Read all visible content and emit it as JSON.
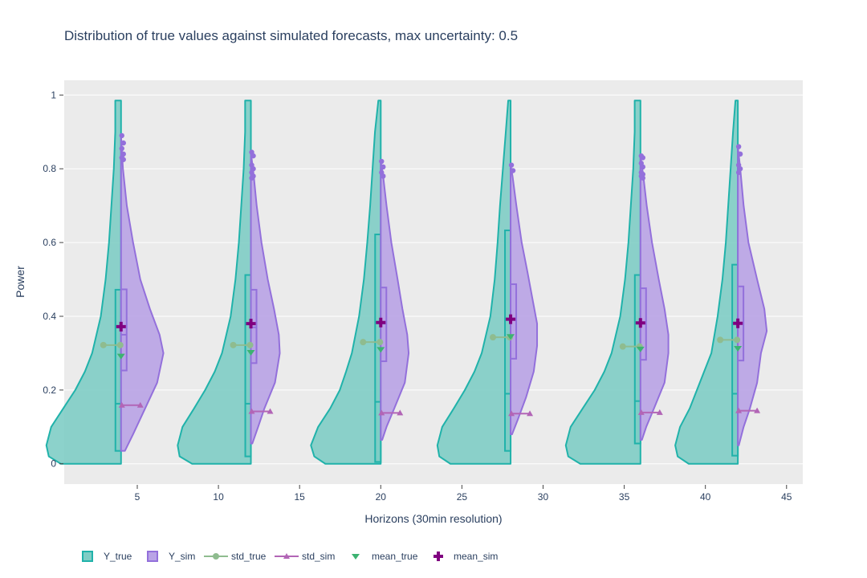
{
  "chart_data": {
    "type": "violin",
    "title": "Distribution of true values against simulated forecasts, max uncertainty: 0.5",
    "xlabel": "Horizons (30min resolution)",
    "ylabel": "Power",
    "xlim": [
      0.5,
      46
    ],
    "ylim": [
      -0.055,
      1.04
    ],
    "x_ticks": [
      5,
      10,
      15,
      20,
      25,
      30,
      35,
      40,
      45
    ],
    "y_ticks": [
      0,
      0.2,
      0.4,
      0.6,
      0.8,
      1
    ],
    "y_tick_labels": [
      "0",
      "0.2",
      "0.4",
      "0.6",
      "0.8",
      "1"
    ],
    "grid": true,
    "legend_position": "bottom-left",
    "colors": {
      "y_true_line": "#20b2aa",
      "y_true_fill": "#7fcdc5",
      "y_sim_line": "#9370db",
      "y_sim_fill": "#b9a3e6",
      "std_true": "#8fbc8f",
      "std_sim": "#b265b6",
      "mean_true": "#3cb371",
      "mean_sim": "#800080",
      "plot_bg": "#ebebeb"
    },
    "legend": [
      {
        "name": "Y_true",
        "symbol": "box-true"
      },
      {
        "name": "Y_sim",
        "symbol": "box-sim"
      },
      {
        "name": "std_true",
        "symbol": "line-circle"
      },
      {
        "name": "std_sim",
        "symbol": "line-triangle"
      },
      {
        "name": "mean_true",
        "symbol": "triangle-down"
      },
      {
        "name": "mean_sim",
        "symbol": "cross"
      }
    ],
    "horizons": [
      {
        "x": 4,
        "max_true": 0.985,
        "true_box": {
          "q1": 0.035,
          "median": 0.163,
          "q3": 0.472
        },
        "sim_box": {
          "q1": 0.253,
          "median": 0.35,
          "q3": 0.473
        },
        "sim_range": [
          0.035,
          0.89
        ],
        "true_density": [
          [
            0.0,
            1.25
          ],
          [
            0.02,
            1.5
          ],
          [
            0.05,
            1.55
          ],
          [
            0.1,
            1.45
          ],
          [
            0.15,
            1.2
          ],
          [
            0.2,
            0.95
          ],
          [
            0.25,
            0.75
          ],
          [
            0.3,
            0.6
          ],
          [
            0.4,
            0.42
          ],
          [
            0.5,
            0.32
          ],
          [
            0.6,
            0.25
          ],
          [
            0.7,
            0.2
          ],
          [
            0.8,
            0.15
          ],
          [
            0.9,
            0.12
          ],
          [
            0.95,
            0.12
          ],
          [
            0.985,
            0.12
          ]
        ],
        "sim_density": [
          [
            0.035,
            0.08
          ],
          [
            0.08,
            0.25
          ],
          [
            0.15,
            0.5
          ],
          [
            0.22,
            0.75
          ],
          [
            0.3,
            0.88
          ],
          [
            0.35,
            0.8
          ],
          [
            0.42,
            0.6
          ],
          [
            0.5,
            0.4
          ],
          [
            0.6,
            0.25
          ],
          [
            0.7,
            0.12
          ],
          [
            0.8,
            0.04
          ],
          [
            0.89,
            0.0
          ]
        ],
        "sim_outliers": [
          0.89,
          0.87,
          0.855,
          0.84,
          0.83,
          0.825
        ],
        "std_true": 0.322,
        "mean_true": 0.292,
        "std_sim": 0.159,
        "mean_sim": 0.372
      },
      {
        "x": 12,
        "max_true": 0.985,
        "true_box": {
          "q1": 0.02,
          "median": 0.163,
          "q3": 0.512
        },
        "sim_box": {
          "q1": 0.273,
          "median": 0.37,
          "q3": 0.472
        },
        "sim_range": [
          0.055,
          0.845
        ],
        "true_density": [
          [
            0.0,
            1.22
          ],
          [
            0.02,
            1.48
          ],
          [
            0.05,
            1.52
          ],
          [
            0.1,
            1.42
          ],
          [
            0.15,
            1.18
          ],
          [
            0.2,
            0.95
          ],
          [
            0.25,
            0.75
          ],
          [
            0.3,
            0.6
          ],
          [
            0.4,
            0.42
          ],
          [
            0.5,
            0.32
          ],
          [
            0.6,
            0.25
          ],
          [
            0.7,
            0.2
          ],
          [
            0.8,
            0.15
          ],
          [
            0.9,
            0.12
          ],
          [
            0.985,
            0.12
          ]
        ],
        "sim_density": [
          [
            0.055,
            0.03
          ],
          [
            0.1,
            0.15
          ],
          [
            0.15,
            0.28
          ],
          [
            0.22,
            0.5
          ],
          [
            0.3,
            0.6
          ],
          [
            0.35,
            0.58
          ],
          [
            0.42,
            0.48
          ],
          [
            0.5,
            0.35
          ],
          [
            0.6,
            0.22
          ],
          [
            0.7,
            0.12
          ],
          [
            0.78,
            0.06
          ],
          [
            0.845,
            0.0
          ]
        ],
        "sim_outliers": [
          0.845,
          0.835,
          0.81,
          0.8,
          0.79,
          0.78,
          0.775
        ],
        "std_true": 0.322,
        "mean_true": 0.302,
        "std_sim": 0.142,
        "mean_sim": 0.38
      },
      {
        "x": 20,
        "max_true": 0.985,
        "true_box": {
          "q1": 0.005,
          "median": 0.168,
          "q3": 0.622
        },
        "sim_box": {
          "q1": 0.278,
          "median": 0.38,
          "q3": 0.478
        },
        "sim_range": [
          0.065,
          0.82
        ],
        "true_density": [
          [
            0.0,
            1.15
          ],
          [
            0.02,
            1.38
          ],
          [
            0.05,
            1.45
          ],
          [
            0.1,
            1.3
          ],
          [
            0.15,
            1.05
          ],
          [
            0.2,
            0.85
          ],
          [
            0.25,
            0.72
          ],
          [
            0.3,
            0.6
          ],
          [
            0.4,
            0.45
          ],
          [
            0.5,
            0.35
          ],
          [
            0.6,
            0.28
          ],
          [
            0.7,
            0.22
          ],
          [
            0.8,
            0.17
          ],
          [
            0.9,
            0.12
          ],
          [
            0.985,
            0.05
          ]
        ],
        "sim_density": [
          [
            0.065,
            0.03
          ],
          [
            0.1,
            0.12
          ],
          [
            0.15,
            0.28
          ],
          [
            0.22,
            0.5
          ],
          [
            0.3,
            0.58
          ],
          [
            0.35,
            0.55
          ],
          [
            0.42,
            0.45
          ],
          [
            0.5,
            0.35
          ],
          [
            0.6,
            0.22
          ],
          [
            0.7,
            0.12
          ],
          [
            0.78,
            0.05
          ],
          [
            0.82,
            0.0
          ]
        ],
        "sim_outliers": [
          0.82,
          0.805,
          0.79,
          0.78
        ],
        "std_true": 0.33,
        "mean_true": 0.31,
        "std_sim": 0.138,
        "mean_sim": 0.383
      },
      {
        "x": 28,
        "max_true": 0.985,
        "true_box": {
          "q1": 0.035,
          "median": 0.19,
          "q3": 0.633
        },
        "sim_box": {
          "q1": 0.285,
          "median": 0.39,
          "q3": 0.487
        },
        "sim_range": [
          0.08,
          0.81
        ],
        "true_density": [
          [
            0.0,
            1.25
          ],
          [
            0.02,
            1.48
          ],
          [
            0.05,
            1.52
          ],
          [
            0.1,
            1.42
          ],
          [
            0.15,
            1.18
          ],
          [
            0.2,
            0.95
          ],
          [
            0.25,
            0.75
          ],
          [
            0.3,
            0.6
          ],
          [
            0.4,
            0.42
          ],
          [
            0.5,
            0.33
          ],
          [
            0.6,
            0.27
          ],
          [
            0.7,
            0.22
          ],
          [
            0.8,
            0.16
          ],
          [
            0.9,
            0.1
          ],
          [
            0.985,
            0.05
          ]
        ],
        "sim_density": [
          [
            0.08,
            0.03
          ],
          [
            0.12,
            0.15
          ],
          [
            0.18,
            0.32
          ],
          [
            0.25,
            0.48
          ],
          [
            0.32,
            0.55
          ],
          [
            0.38,
            0.55
          ],
          [
            0.45,
            0.45
          ],
          [
            0.52,
            0.35
          ],
          [
            0.6,
            0.23
          ],
          [
            0.7,
            0.12
          ],
          [
            0.78,
            0.04
          ],
          [
            0.81,
            0.0
          ]
        ],
        "sim_outliers": [
          0.81,
          0.795
        ],
        "std_true": 0.343,
        "mean_true": 0.345,
        "std_sim": 0.136,
        "mean_sim": 0.392
      },
      {
        "x": 36,
        "max_true": 0.985,
        "true_box": {
          "q1": 0.055,
          "median": 0.17,
          "q3": 0.512
        },
        "sim_box": {
          "q1": 0.282,
          "median": 0.38,
          "q3": 0.476
        },
        "sim_range": [
          0.065,
          0.835
        ],
        "true_density": [
          [
            0.0,
            1.25
          ],
          [
            0.02,
            1.5
          ],
          [
            0.05,
            1.55
          ],
          [
            0.1,
            1.45
          ],
          [
            0.15,
            1.2
          ],
          [
            0.2,
            0.95
          ],
          [
            0.25,
            0.75
          ],
          [
            0.3,
            0.6
          ],
          [
            0.4,
            0.42
          ],
          [
            0.5,
            0.32
          ],
          [
            0.6,
            0.25
          ],
          [
            0.7,
            0.2
          ],
          [
            0.8,
            0.15
          ],
          [
            0.9,
            0.12
          ],
          [
            0.985,
            0.12
          ]
        ],
        "sim_density": [
          [
            0.065,
            0.03
          ],
          [
            0.1,
            0.12
          ],
          [
            0.15,
            0.28
          ],
          [
            0.22,
            0.5
          ],
          [
            0.3,
            0.58
          ],
          [
            0.35,
            0.58
          ],
          [
            0.42,
            0.5
          ],
          [
            0.5,
            0.38
          ],
          [
            0.6,
            0.24
          ],
          [
            0.7,
            0.13
          ],
          [
            0.78,
            0.06
          ],
          [
            0.835,
            0.0
          ]
        ],
        "sim_outliers": [
          0.835,
          0.83,
          0.815,
          0.805,
          0.79,
          0.785,
          0.78,
          0.775
        ],
        "std_true": 0.318,
        "mean_true": 0.311,
        "std_sim": 0.139,
        "mean_sim": 0.382
      },
      {
        "x": 42,
        "max_true": 0.985,
        "true_box": {
          "q1": 0.022,
          "median": 0.19,
          "q3": 0.54
        },
        "sim_box": {
          "q1": 0.28,
          "median": 0.38,
          "q3": 0.481
        },
        "sim_range": [
          0.05,
          0.86
        ],
        "true_density": [
          [
            0.0,
            1.02
          ],
          [
            0.02,
            1.25
          ],
          [
            0.05,
            1.3
          ],
          [
            0.1,
            1.2
          ],
          [
            0.15,
            1.0
          ],
          [
            0.2,
            0.85
          ],
          [
            0.25,
            0.7
          ],
          [
            0.3,
            0.55
          ],
          [
            0.4,
            0.42
          ],
          [
            0.5,
            0.32
          ],
          [
            0.6,
            0.25
          ],
          [
            0.7,
            0.2
          ],
          [
            0.8,
            0.15
          ],
          [
            0.9,
            0.1
          ],
          [
            0.985,
            0.05
          ]
        ],
        "sim_density": [
          [
            0.05,
            0.02
          ],
          [
            0.1,
            0.12
          ],
          [
            0.15,
            0.25
          ],
          [
            0.22,
            0.4
          ],
          [
            0.3,
            0.48
          ],
          [
            0.36,
            0.6
          ],
          [
            0.42,
            0.55
          ],
          [
            0.5,
            0.4
          ],
          [
            0.6,
            0.22
          ],
          [
            0.7,
            0.12
          ],
          [
            0.8,
            0.05
          ],
          [
            0.86,
            0.0
          ]
        ],
        "sim_outliers": [
          0.86,
          0.84,
          0.81,
          0.8,
          0.79
        ],
        "std_true": 0.336,
        "mean_true": 0.313,
        "std_sim": 0.144,
        "mean_sim": 0.381
      }
    ]
  }
}
